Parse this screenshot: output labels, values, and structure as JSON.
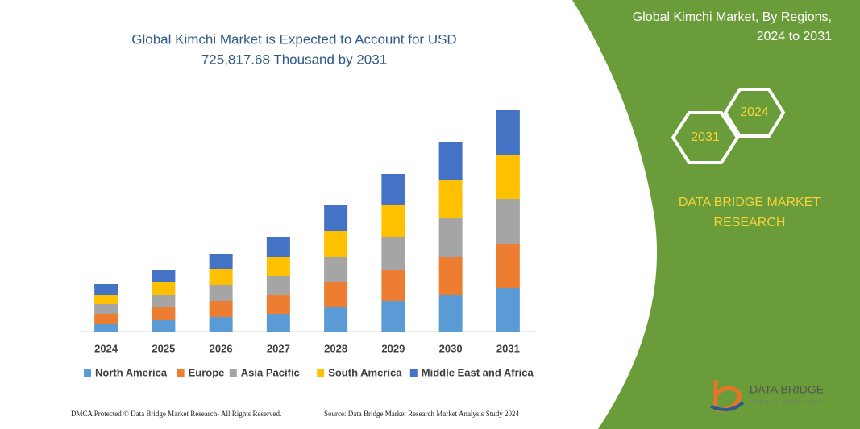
{
  "chart_data": {
    "type": "stacked_bar",
    "title": [
      "Global Kimchi Market is Expected to Account for USD",
      "725,817.68 Thousand  by 2031"
    ],
    "categories": [
      "2024",
      "2025",
      "2026",
      "2027",
      "2028",
      "2029",
      "2030",
      "2031"
    ],
    "series": [
      {
        "name": "North America",
        "color": "#5b9bd5",
        "values": [
          10,
          14,
          18,
          22,
          30,
          38,
          46,
          54
        ]
      },
      {
        "name": "Europe",
        "color": "#ed7d31",
        "values": [
          12,
          16,
          20,
          24,
          32,
          39,
          47,
          55
        ]
      },
      {
        "name": "Asia Pacific",
        "color": "#a5a5a5",
        "values": [
          12,
          16,
          20,
          23,
          31,
          40,
          48,
          56
        ]
      },
      {
        "name": "South America",
        "color": "#ffc000",
        "values": [
          12,
          16,
          20,
          24,
          32,
          40,
          47,
          55
        ]
      },
      {
        "name": "Middle East and Africa",
        "color": "#4472c4",
        "values": [
          13,
          15,
          19,
          24,
          32,
          39,
          48,
          55
        ]
      }
    ]
  },
  "side_panel": {
    "title": [
      "Global Kimchi Market, By Regions,",
      "2024 to 2031"
    ],
    "hex_labels": [
      "2024",
      "2031"
    ],
    "brand": [
      "DATA BRIDGE MARKET",
      "RESEARCH"
    ]
  },
  "footer": {
    "left": "DMCA Protected © Data Bridge Market Research-  All Rights Reserved.",
    "right": "Source: Data Bridge Market Research  Market Analysis Study 2024"
  },
  "logo": {
    "name": "DATA BRIDGE",
    "tagline": "MARKET RESEARCH"
  }
}
